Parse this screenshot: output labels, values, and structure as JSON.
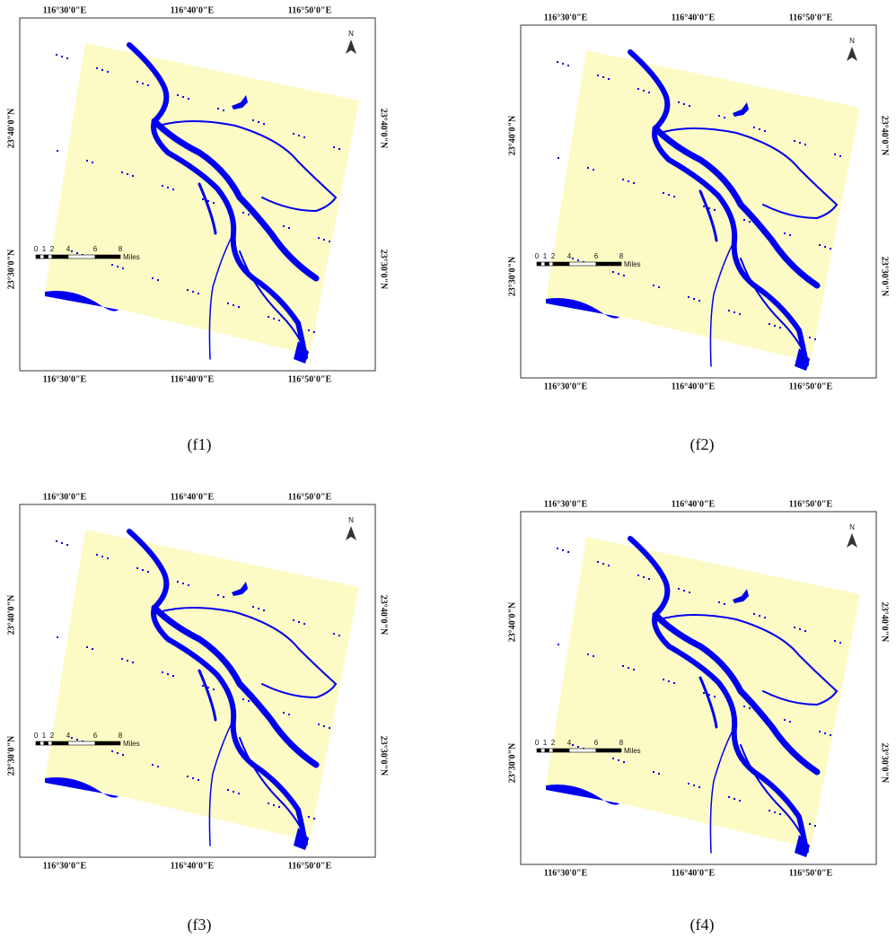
{
  "panels": [
    {
      "caption": "(f1)",
      "top_labels": [
        "116°30'0\"E",
        "116°40'0\"E",
        "116°50'0\"E"
      ],
      "bottom_labels": [
        "116°30'0\"E",
        "116°40'0\"E",
        "116°50'0\"E"
      ],
      "left_labels": [
        "23°40'0\"N",
        "23°30'0\"N"
      ],
      "right_labels": [
        "23°40'0\"N",
        "23°30'0\"N"
      ],
      "north": "N",
      "scale_labels": [
        "0",
        "1",
        "2",
        "4",
        "6",
        "8"
      ],
      "scale_unit": "Miles"
    },
    {
      "caption": "(f2)",
      "top_labels": [
        "116°30'0\"E",
        "116°40'0\"E",
        "116°50'0\"E"
      ],
      "bottom_labels": [
        "116°30'0\"E",
        "116°40'0\"E",
        "116°50'0\"E"
      ],
      "left_labels": [
        "23°40'0\"N",
        "23°30'0\"N"
      ],
      "right_labels": [
        "23°40'0\"N",
        "23°30'0\"N"
      ],
      "north": "N",
      "scale_labels": [
        "0",
        "1",
        "2",
        "4",
        "6",
        "8"
      ],
      "scale_unit": "Miles"
    },
    {
      "caption": "(f3)",
      "top_labels": [
        "116°30'0\"E",
        "116°40'0\"E",
        "116°50'0\"E"
      ],
      "bottom_labels": [
        "116°30'0\"E",
        "116°40'0\"E",
        "116°50'0\"E"
      ],
      "left_labels": [
        "23°40'0\"N",
        "23°30'0\"N"
      ],
      "right_labels": [
        "23°40'0\"N",
        "23°30'0\"N"
      ],
      "north": "N",
      "scale_labels": [
        "0",
        "1",
        "2",
        "4",
        "6",
        "8"
      ],
      "scale_unit": "Miles"
    },
    {
      "caption": "(f4)",
      "top_labels": [
        "116°30'0\"E",
        "116°40'0\"E",
        "116°50'0\"E"
      ],
      "bottom_labels": [
        "116°30'0\"E",
        "116°40'0\"E",
        "116°50'0\"E"
      ],
      "left_labels": [
        "23°40'0\"N",
        "23°30'0\"N"
      ],
      "right_labels": [
        "23°40'0\"N",
        "23°30'0\"N"
      ],
      "north": "N",
      "scale_labels": [
        "0",
        "1",
        "2",
        "4",
        "6",
        "8"
      ],
      "scale_unit": "Miles"
    }
  ]
}
